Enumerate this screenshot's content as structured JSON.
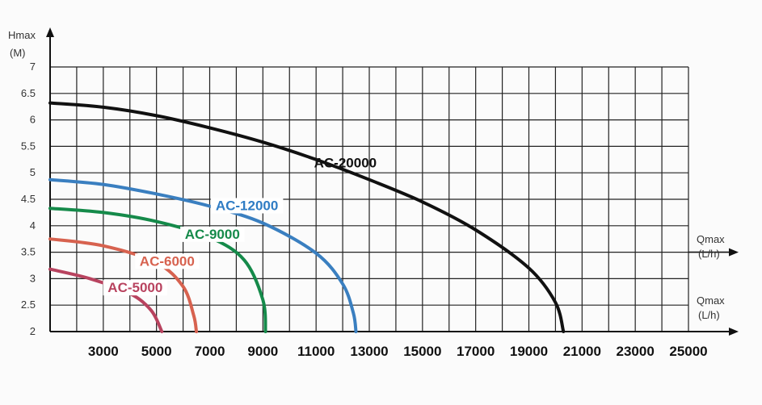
{
  "chart_data": {
    "type": "line",
    "title": "",
    "ylabel": "Hmax",
    "ylabel_unit": "(M)",
    "xlabel": "Qmax",
    "xlabel_unit": "(L/h)",
    "xlabel2": "Qmax",
    "xlabel2_unit": "(L/h)",
    "xlim": [
      1000,
      25000
    ],
    "ylim": [
      2,
      7
    ],
    "x_ticks": [
      "3000",
      "5000",
      "7000",
      "9000",
      "11000",
      "13000",
      "15000",
      "17000",
      "19000",
      "21000",
      "23000",
      "25000"
    ],
    "y_ticks": [
      "2",
      "2.5",
      "3",
      "3.5",
      "4",
      "4.5",
      "5",
      "5.5",
      "6",
      "6.5",
      "7"
    ],
    "grid": true,
    "series": [
      {
        "name": "AC-20000",
        "color": "#111111",
        "label_color": "#111111",
        "label_bg": "none",
        "values": [
          [
            1000,
            6.32
          ],
          [
            3000,
            6.24
          ],
          [
            5000,
            6.08
          ],
          [
            7000,
            5.85
          ],
          [
            9000,
            5.58
          ],
          [
            11000,
            5.25
          ],
          [
            13000,
            4.87
          ],
          [
            15000,
            4.45
          ],
          [
            17000,
            3.92
          ],
          [
            19000,
            3.2
          ],
          [
            20000,
            2.55
          ],
          [
            20300,
            2.0
          ]
        ]
      },
      {
        "name": "AC-12000",
        "color": "#3a7fc0",
        "label_color": "#2f7cc4",
        "label_bg": "#ffffff",
        "values": [
          [
            1000,
            4.87
          ],
          [
            3000,
            4.78
          ],
          [
            5000,
            4.6
          ],
          [
            7000,
            4.37
          ],
          [
            9000,
            4.05
          ],
          [
            11000,
            3.48
          ],
          [
            12000,
            2.9
          ],
          [
            12400,
            2.35
          ],
          [
            12500,
            2.0
          ]
        ]
      },
      {
        "name": "AC-9000",
        "color": "#158a4a",
        "label_color": "#158a4a",
        "label_bg": "#ffffff",
        "values": [
          [
            1000,
            4.33
          ],
          [
            3000,
            4.25
          ],
          [
            5000,
            4.08
          ],
          [
            7000,
            3.78
          ],
          [
            8300,
            3.35
          ],
          [
            9000,
            2.6
          ],
          [
            9100,
            2.0
          ]
        ]
      },
      {
        "name": "AC-6000",
        "color": "#d7624f",
        "label_color": "#d7624f",
        "label_bg": "#ffffff",
        "values": [
          [
            1000,
            3.75
          ],
          [
            3000,
            3.62
          ],
          [
            5000,
            3.3
          ],
          [
            6000,
            2.85
          ],
          [
            6400,
            2.3
          ],
          [
            6500,
            2.0
          ]
        ]
      },
      {
        "name": "AC-5000",
        "color": "#b8435f",
        "label_color": "#b8435f",
        "label_bg": "#ffffff",
        "values": [
          [
            1000,
            3.18
          ],
          [
            2500,
            3.0
          ],
          [
            4000,
            2.72
          ],
          [
            4800,
            2.4
          ],
          [
            5200,
            2.0
          ]
        ]
      }
    ]
  }
}
